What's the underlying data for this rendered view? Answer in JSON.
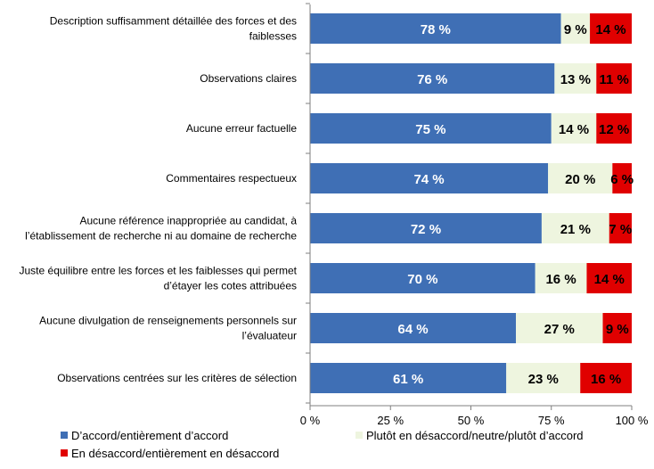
{
  "chart_data": {
    "type": "bar",
    "orientation": "horizontal",
    "stacked": true,
    "categories": [
      [
        "Description suffisamment détaillée des forces et des",
        "faiblesses"
      ],
      [
        "Observations claires"
      ],
      [
        "Aucune erreur factuelle"
      ],
      [
        "Commentaires respectueux"
      ],
      [
        "Aucune référence inappropriée au candidat, à",
        "l’établissement de recherche ni au domaine de recherche"
      ],
      [
        "Juste équilibre entre les forces et les faiblesses qui permet",
        "d’étayer les cotes attribuées"
      ],
      [
        "Aucune divulgation de renseignements personnels sur",
        "l’évaluateur"
      ],
      [
        "Observations centrées sur les critères de sélection"
      ]
    ],
    "series": [
      {
        "name": "D’accord/entièrement d’accord",
        "values": [
          78,
          76,
          75,
          74,
          72,
          70,
          64,
          61
        ],
        "labels": [
          "78 %",
          "76 %",
          "75 %",
          "74 %",
          "72 %",
          "70 %",
          "64 %",
          "61 %"
        ],
        "color": "#3F6FB5",
        "label_color": "#FFFFFF"
      },
      {
        "name": "Plutôt en désaccord/neutre/plutôt d’accord",
        "values": [
          9,
          13,
          14,
          20,
          21,
          16,
          27,
          23
        ],
        "labels": [
          "9 %",
          "13 %",
          "14 %",
          "20 %",
          "21 %",
          "16 %",
          "27 %",
          "23 %"
        ],
        "color": "#EEF5DF",
        "label_color": "#000000"
      },
      {
        "name": "En désaccord/entièrement en désaccord",
        "values": [
          14,
          11,
          12,
          6,
          7,
          14,
          9,
          16
        ],
        "labels": [
          "14 %",
          "11 %",
          "12 %",
          "6 %",
          "7 %",
          "14 %",
          "9 %",
          "16 %"
        ],
        "color": "#E00000",
        "label_color": "#000000"
      }
    ],
    "x_ticks": [
      0,
      25,
      50,
      75,
      100
    ],
    "x_tick_labels": [
      "0 %",
      "25 %",
      "50 %",
      "75 %",
      "100 %"
    ],
    "xlim": [
      0,
      100
    ],
    "grid": false,
    "legend_position": "bottom",
    "title": "",
    "xlabel": "",
    "ylabel": ""
  }
}
